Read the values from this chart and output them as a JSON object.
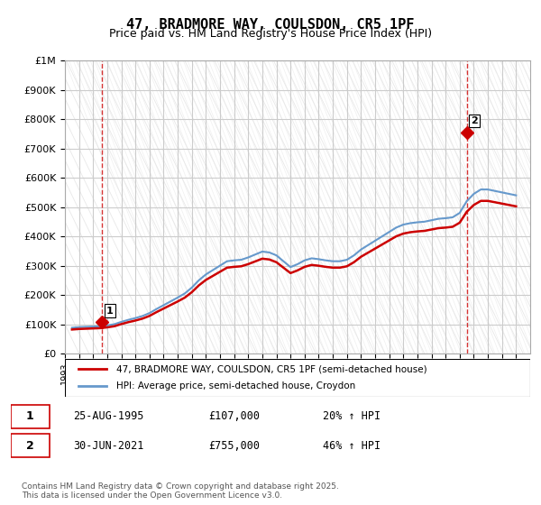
{
  "title": "47, BRADMORE WAY, COULSDON, CR5 1PF",
  "subtitle": "Price paid vs. HM Land Registry's House Price Index (HPI)",
  "legend_line1": "47, BRADMORE WAY, COULSDON, CR5 1PF (semi-detached house)",
  "legend_line2": "HPI: Average price, semi-detached house, Croydon",
  "footnote": "Contains HM Land Registry data © Crown copyright and database right 2025.\nThis data is licensed under the Open Government Licence v3.0.",
  "annotation1_label": "1",
  "annotation1_date": "25-AUG-1995",
  "annotation1_price": "£107,000",
  "annotation1_hpi": "20% ↑ HPI",
  "annotation2_label": "2",
  "annotation2_date": "30-JUN-2021",
  "annotation2_price": "£755,000",
  "annotation2_hpi": "46% ↑ HPI",
  "red_color": "#cc0000",
  "blue_color": "#6699cc",
  "background_color": "#ffffff",
  "grid_color": "#cccccc",
  "hatch_color": "#dddddd",
  "ylim": [
    0,
    1000000
  ],
  "xlim_start": 1993,
  "xlim_end": 2026,
  "hpi_data": {
    "years": [
      1993.5,
      1994.0,
      1994.5,
      1995.0,
      1995.5,
      1996.0,
      1996.5,
      1997.0,
      1997.5,
      1998.0,
      1998.5,
      1999.0,
      1999.5,
      2000.0,
      2000.5,
      2001.0,
      2001.5,
      2002.0,
      2002.5,
      2003.0,
      2003.5,
      2004.0,
      2004.5,
      2005.0,
      2005.5,
      2006.0,
      2006.5,
      2007.0,
      2007.5,
      2008.0,
      2008.5,
      2009.0,
      2009.5,
      2010.0,
      2010.5,
      2011.0,
      2011.5,
      2012.0,
      2012.5,
      2013.0,
      2013.5,
      2014.0,
      2014.5,
      2015.0,
      2015.5,
      2016.0,
      2016.5,
      2017.0,
      2017.5,
      2018.0,
      2018.5,
      2019.0,
      2019.5,
      2020.0,
      2020.5,
      2021.0,
      2021.5,
      2022.0,
      2022.5,
      2023.0,
      2023.5,
      2024.0,
      2024.5,
      2025.0
    ],
    "values": [
      88000,
      90000,
      91000,
      92000,
      93000,
      96000,
      100000,
      108000,
      115000,
      121000,
      128000,
      138000,
      152000,
      165000,
      178000,
      191000,
      205000,
      225000,
      250000,
      270000,
      285000,
      300000,
      315000,
      318000,
      320000,
      328000,
      338000,
      348000,
      345000,
      335000,
      315000,
      295000,
      305000,
      318000,
      325000,
      322000,
      318000,
      315000,
      315000,
      320000,
      335000,
      355000,
      370000,
      385000,
      400000,
      415000,
      430000,
      440000,
      445000,
      448000,
      450000,
      455000,
      460000,
      462000,
      465000,
      480000,
      520000,
      545000,
      560000,
      560000,
      555000,
      550000,
      545000,
      540000
    ]
  },
  "property_sales": [
    {
      "year": 1995.65,
      "price": 107000
    },
    {
      "year": 2021.5,
      "price": 755000
    }
  ],
  "sale_markers": [
    {
      "year": 1995.65,
      "price": 107000,
      "label": "1"
    },
    {
      "year": 2021.5,
      "price": 755000,
      "label": "2"
    }
  ],
  "vlines": [
    1995.65,
    2021.5
  ]
}
